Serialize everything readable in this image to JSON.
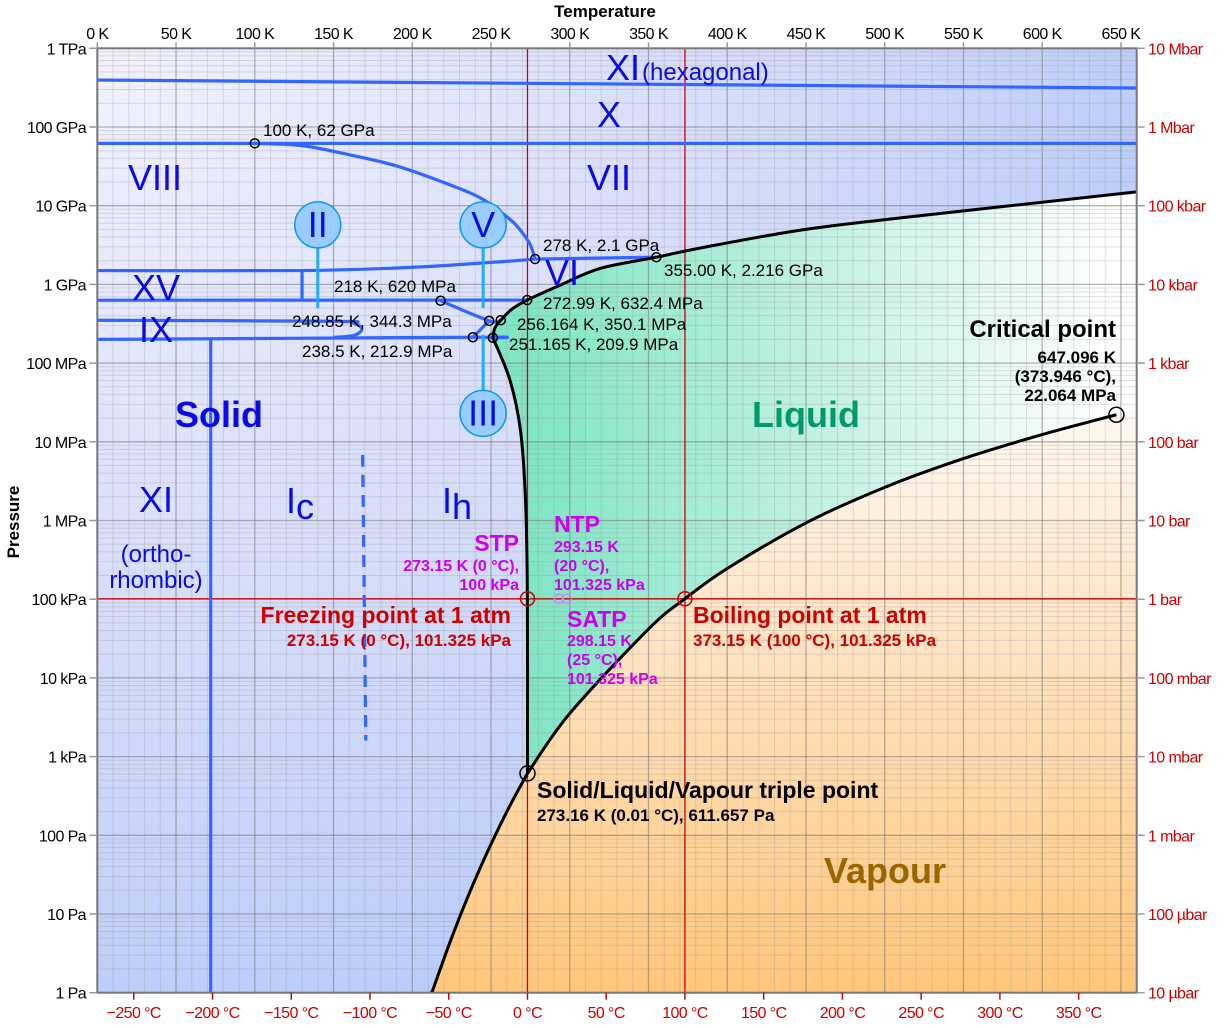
{
  "chart_data": {
    "type": "line",
    "title": "",
    "xlabel": "Temperature",
    "ylabel": "Pressure",
    "xlim": [
      0,
      660
    ],
    "ylim": [
      1,
      1000000000000.0
    ],
    "yscale": "log",
    "grid": true,
    "x_ticks_top": {
      "values": [
        0,
        50,
        100,
        150,
        200,
        250,
        300,
        350,
        400,
        450,
        500,
        550,
        600,
        650
      ],
      "labels": [
        "0 K",
        "50 K",
        "100 K",
        "150 K",
        "200 K",
        "250 K",
        "300 K",
        "350 K",
        "400 K",
        "450 K",
        "500 K",
        "550 K",
        "600 K",
        "650 K"
      ]
    },
    "x_ticks_bottom": {
      "values_celsius": [
        -250,
        -200,
        -150,
        -100,
        -50,
        0,
        50,
        100,
        150,
        200,
        250,
        300,
        350
      ],
      "labels": [
        "−250 °C",
        "−200 °C",
        "−150 °C",
        "−100 °C",
        "−50 °C",
        "0 °C",
        "50 °C",
        "100 °C",
        "150 °C",
        "200 °C",
        "250 °C",
        "300 °C",
        "350 °C"
      ]
    },
    "y_ticks_left": {
      "values": [
        1000000000000.0,
        100000000000.0,
        10000000000.0,
        1000000000.0,
        100000000.0,
        10000000.0,
        1000000.0,
        100000.0,
        10000.0,
        1000.0,
        100,
        10,
        1
      ],
      "labels": [
        "1 TPa",
        "100 GPa",
        "10 GPa",
        "1 GPa",
        "100 MPa",
        "10 MPa",
        "1 MPa",
        "100 kPa",
        "10 kPa",
        "1 kPa",
        "100 Pa",
        "10 Pa",
        "1 Pa"
      ]
    },
    "y_ticks_right": {
      "values": [
        1000000000000.0,
        100000000000.0,
        10000000000.0,
        1000000000.0,
        100000000.0,
        10000000.0,
        1000000.0,
        100000.0,
        10000.0,
        1000.0,
        100,
        10,
        1
      ],
      "labels": [
        "10 Mbar",
        "1 Mbar",
        "100 kbar",
        "10 kbar",
        "1 kbar",
        "100 bar",
        "10 bar",
        "1 bar",
        "100 mbar",
        "10 mbar",
        "1 mbar",
        "100 µbar",
        "10 µbar"
      ]
    },
    "reference_lines": {
      "temperatures_K": [
        273.15,
        373.15
      ],
      "pressure_Pa": 101325,
      "color": "#cc0000"
    },
    "colors": {
      "ice_boundary": "#3366ff",
      "phase_boundary": "#000000",
      "stem": "#22aaff",
      "solid": "#b0c6fa",
      "liquid": "#7fe5c5",
      "vapour": "#ffc67a"
    },
    "boundaries": [
      {
        "kind": "ice",
        "points": [
          [
            0,
            395000000000.0
          ],
          [
            660,
            313000000000.0
          ]
        ]
      },
      {
        "kind": "ice",
        "points": [
          [
            0,
            62000000000.0
          ],
          [
            660,
            62000000000.0
          ]
        ]
      },
      {
        "kind": "ice",
        "points": [
          [
            100,
            62000000000.0
          ],
          [
            130,
            58000000000.0
          ],
          [
            160.8,
            44000000000.0
          ],
          [
            190,
            32000000000.0
          ],
          [
            224.2,
            18300000000.0
          ],
          [
            245,
            12000000000.0
          ],
          [
            262.4,
            6600000000.0
          ],
          [
            270,
            4500000000.0
          ],
          [
            275,
            3160000000.0
          ],
          [
            278,
            2100000000.0
          ]
        ]
      },
      {
        "kind": "ice",
        "points": [
          [
            0,
            1500000000.0
          ],
          [
            130,
            1500000000.0
          ],
          [
            200,
            1650000000.0
          ],
          [
            250,
            1900000000.0
          ],
          [
            278,
            2100000000.0
          ]
        ]
      },
      {
        "kind": "ice",
        "points": [
          [
            278,
            2100000000.0
          ],
          [
            355,
            2216000000.0
          ]
        ]
      },
      {
        "kind": "ice",
        "points": [
          [
            0,
            630000000.0
          ],
          [
            272.99,
            632400000.0
          ]
        ]
      },
      {
        "kind": "ice",
        "points": [
          [
            130,
            630000000.0
          ],
          [
            130,
            1500000000.0
          ]
        ]
      },
      {
        "kind": "ice",
        "points": [
          [
            218,
            620000000.0
          ],
          [
            248.85,
            344300000.0
          ],
          [
            256.164,
            350100000.0
          ]
        ]
      },
      {
        "kind": "ice",
        "points": [
          [
            238.5,
            212900000.0
          ],
          [
            248.85,
            344300000.0
          ]
        ]
      },
      {
        "kind": "ice",
        "points": [
          [
            0,
            350000000.0
          ],
          [
            150,
            340000000.0
          ],
          [
            163,
            320000000.0
          ],
          [
            168,
            270000000.0
          ],
          [
            163,
            225000000.0
          ],
          [
            150,
            212000000.0
          ]
        ]
      },
      {
        "kind": "ice",
        "points": [
          [
            0,
            200000000.0
          ],
          [
            238.5,
            212900000.0
          ],
          [
            251.165,
            209900000.0
          ]
        ]
      },
      {
        "kind": "ice",
        "points": [
          [
            72,
            200000000.0
          ],
          [
            72,
            1
          ]
        ]
      },
      {
        "kind": "ice-dashed",
        "points": [
          [
            168.5,
            6800000.0
          ],
          [
            170.5,
            1600.0
          ]
        ]
      },
      {
        "kind": "phase",
        "points": [
          [
            251.165,
            209900000.0
          ],
          [
            262,
            61000000.0
          ],
          [
            268.7,
            14000000.0
          ],
          [
            271.9,
            1800000.0
          ],
          [
            273.1,
            100000.0
          ],
          [
            273.16,
            611.657
          ]
        ]
      },
      {
        "kind": "phase",
        "points": [
          [
            251.165,
            209900000.0
          ],
          [
            252.5,
            280000000.0
          ],
          [
            256.164,
            350100000.0
          ],
          [
            263,
            480000000.0
          ],
          [
            272.99,
            632400000.0
          ],
          [
            294,
            980000000.0
          ],
          [
            319.5,
            1600000000.0
          ],
          [
            355,
            2216000000.0
          ],
          [
            383,
            2900000000.0
          ],
          [
            446.6,
            4900000000.0
          ],
          [
            510,
            7000000000.0
          ],
          [
            660,
            15000000000.0
          ]
        ]
      },
      {
        "kind": "phase",
        "points": [
          [
            273.16,
            611.657
          ],
          [
            300,
            3537
          ],
          [
            350,
            41680
          ],
          [
            373.15,
            101325
          ],
          [
            400,
            245770
          ],
          [
            450,
            932200
          ],
          [
            500,
            2639200.0
          ],
          [
            550,
            6117200.0
          ],
          [
            600,
            12345000.0
          ],
          [
            647.096,
            22064000.0
          ]
        ]
      },
      {
        "kind": "phase",
        "points": [
          [
            211.7,
            1
          ],
          [
            213,
            1.08
          ],
          [
            223,
            3.9
          ],
          [
            233,
            12.8
          ],
          [
            243,
            38
          ],
          [
            253,
            103.2
          ],
          [
            263,
            260
          ],
          [
            273.16,
            611.657
          ]
        ]
      }
    ],
    "points": [
      {
        "T": 100,
        "P": 62000000000.0
      },
      {
        "T": 278,
        "P": 2100000000.0
      },
      {
        "T": 355,
        "P": 2216000000.0
      },
      {
        "T": 218,
        "P": 620000000.0
      },
      {
        "T": 272.99,
        "P": 632400000.0
      },
      {
        "T": 248.85,
        "P": 344300000.0
      },
      {
        "T": 256.164,
        "P": 350100000.0
      },
      {
        "T": 238.5,
        "P": 212900000.0
      },
      {
        "T": 251.165,
        "P": 209900000.0
      },
      {
        "T": 647.096,
        "P": 22064000.0
      },
      {
        "T": 273.16,
        "P": 611.657
      }
    ],
    "reference_points": [
      {
        "T": 273.15,
        "P": 101325,
        "kind": "red"
      },
      {
        "T": 373.15,
        "P": 101325,
        "kind": "red"
      },
      {
        "T": 293.15,
        "P": 101325,
        "kind": "magenta"
      },
      {
        "T": 298.15,
        "P": 101325,
        "kind": "magenta"
      }
    ],
    "ice_circles": [
      {
        "label": "II",
        "T": 140,
        "P": 5700000000.0,
        "stem_to_P": 500000000.0
      },
      {
        "label": "V",
        "T": 245,
        "P": 5700000000.0,
        "stem_to_P": 500000000.0
      },
      {
        "label": "III",
        "T": 245,
        "P": 23000000.0,
        "stem_to_P": 230000000.0
      }
    ]
  },
  "regions": {
    "xi_hex": "XI",
    "hexagonal": "(hexagonal)",
    "x": "X",
    "viii": "VIII",
    "vii": "VII",
    "xv": "XV",
    "vi": "VI",
    "ix": "IX",
    "xi_orth": "XI",
    "ortho": "(ortho-",
    "rhombic": "rhombic)",
    "ic_main": "I",
    "ic_sub": "c",
    "ih_main": "I",
    "ih_sub": "h",
    "solid": "Solid",
    "liquid": "Liquid",
    "vapour": "Vapour"
  },
  "annotations": {
    "p100k": "100 K, 62 GPa",
    "p278": "278 K, 2.1 GPa",
    "p355": "355.00 K, 2.216 GPa",
    "p218": "218 K, 620 MPa",
    "p272": "272.99 K, 632.4 MPa",
    "p248": "248.85 K, 344.3 MPa",
    "p256": "256.164 K, 350.1 MPa",
    "p238": "238.5 K, 212.9 MPa",
    "p251": "251.165 K, 209.9 MPa",
    "critical": {
      "title": "Critical point",
      "l1": "647.096 K",
      "l2": "(373.946 °C),",
      "l3": "22.064 MPa"
    },
    "stp": {
      "title": "STP",
      "l1": "273.15 K (0 °C),",
      "l2": "100 kPa"
    },
    "ntp": {
      "title": "NTP",
      "l1": "293.15 K",
      "l2": "(20 °C),",
      "l3": "101.325 kPa"
    },
    "satp": {
      "title": "SATP",
      "l1": "298.15 K",
      "l2": "(25 °C),",
      "l3": "101.325 kPa"
    },
    "freezing": {
      "title": "Freezing point at 1 atm",
      "l1": "273.15 K (0 °C), 101.325 kPa"
    },
    "boiling": {
      "title": "Boiling point at 1 atm",
      "l1": "373.15 K (100 °C), 101.325 kPa"
    },
    "triple": {
      "title": "Solid/Liquid/Vapour triple point",
      "l1": "273.16 K (0.01 °C), 611.657 Pa"
    }
  }
}
